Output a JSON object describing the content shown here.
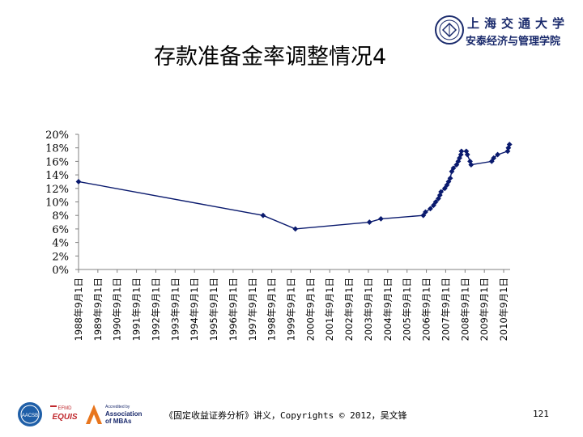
{
  "slide": {
    "title": "存款准备金率调整情况4",
    "footer": "《固定收益证券分析》讲义，Copyrights © 2012，吴文锋",
    "page_number": "121"
  },
  "logo": {
    "line1": "上海交通大学",
    "line2": "安泰经济与管理学院"
  },
  "accreditations": {
    "aacsb": "AACSB",
    "equis": "EQUIS",
    "efmd": "EFMD",
    "amba_top": "Accredited by",
    "amba_line1": "Association",
    "amba_line2": "of MBAs"
  },
  "colors": {
    "series": "#0a1a6e",
    "axis": "#808080"
  },
  "chart_data": {
    "type": "line",
    "title": "",
    "xlabel": "",
    "ylabel": "",
    "ylim": [
      0,
      20
    ],
    "yticks": [
      "0%",
      "2%",
      "4%",
      "6%",
      "8%",
      "10%",
      "12%",
      "14%",
      "16%",
      "18%",
      "20%"
    ],
    "xticks": [
      "1988年9月1日",
      "1989年9月1日",
      "1990年9月1日",
      "1991年9月1日",
      "1992年9月1日",
      "1993年9月1日",
      "1994年9月1日",
      "1995年9月1日",
      "1996年9月1日",
      "1997年9月1日",
      "1998年9月1日",
      "1999年9月1日",
      "2000年9月1日",
      "2001年9月1日",
      "2002年9月1日",
      "2003年9月1日",
      "2004年9月1日",
      "2005年9月1日",
      "2006年9月1日",
      "2007年9月1日",
      "2008年9月1日",
      "2009年9月1日",
      "2010年9月1日"
    ],
    "xrange": [
      "1988-09-01",
      "2011-01-01"
    ],
    "grid": false,
    "series": [
      {
        "points": [
          [
            "1988-09-01",
            13
          ],
          [
            "1998-03-21",
            8
          ],
          [
            "1999-11-21",
            6
          ],
          [
            "2003-09-21",
            7
          ],
          [
            "2004-04-25",
            7.5
          ],
          [
            "2006-07-05",
            8
          ],
          [
            "2006-08-15",
            8.5
          ],
          [
            "2006-11-15",
            9
          ],
          [
            "2007-01-15",
            9.5
          ],
          [
            "2007-02-25",
            10
          ],
          [
            "2007-04-16",
            10.5
          ],
          [
            "2007-05-15",
            11
          ],
          [
            "2007-06-05",
            11.5
          ],
          [
            "2007-08-15",
            12
          ],
          [
            "2007-09-25",
            12.5
          ],
          [
            "2007-10-25",
            13
          ],
          [
            "2007-11-26",
            13.5
          ],
          [
            "2007-12-25",
            14.5
          ],
          [
            "2008-01-25",
            15
          ],
          [
            "2008-03-25",
            15.5
          ],
          [
            "2008-04-25",
            16
          ],
          [
            "2008-05-20",
            16.5
          ],
          [
            "2008-06-15",
            17
          ],
          [
            "2008-06-25",
            17.5
          ],
          [
            "2008-09-25",
            17.5
          ],
          [
            "2008-10-15",
            17
          ],
          [
            "2008-12-05",
            16
          ],
          [
            "2008-12-25",
            15.5
          ],
          [
            "2010-01-18",
            16
          ],
          [
            "2010-02-25",
            16.5
          ],
          [
            "2010-05-10",
            17
          ],
          [
            "2010-11-16",
            17.5
          ],
          [
            "2010-11-29",
            18
          ],
          [
            "2010-12-20",
            18.5
          ]
        ]
      }
    ]
  }
}
